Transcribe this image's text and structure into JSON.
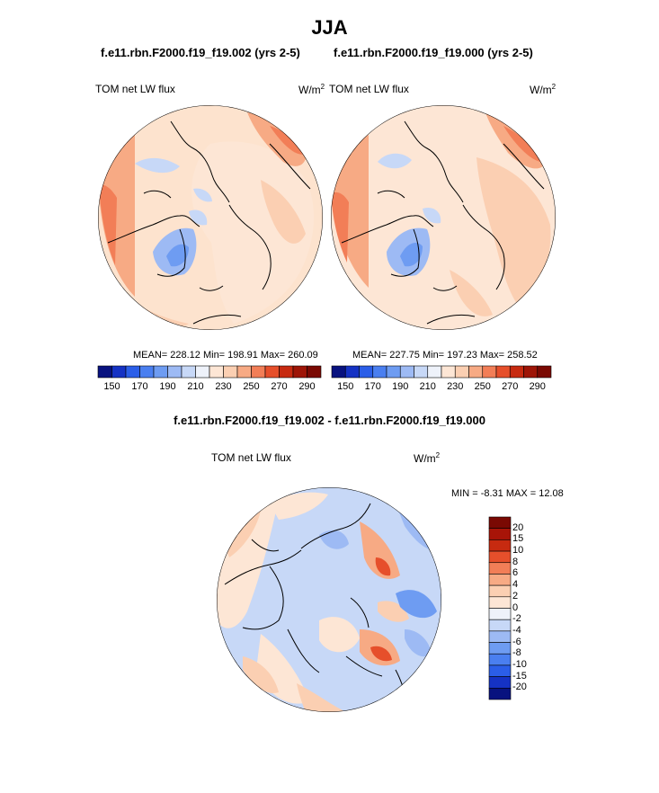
{
  "page_title": "JJA",
  "colors": {
    "palette": [
      "#08127f",
      "#1532c4",
      "#2b5ee8",
      "#4a7ff0",
      "#6e9cf2",
      "#9dbaf4",
      "#c7d8f7",
      "#eef2fa",
      "#fde6d5",
      "#fbcfb2",
      "#f7aa84",
      "#f27e57",
      "#e64f2b",
      "#c72a10",
      "#9e1507",
      "#7a0903"
    ],
    "ocean_base_left": "#fde3ce",
    "coast": "#000000"
  },
  "chart_data": [
    {
      "type": "heatmap",
      "title": "f.e11.rbn.F2000.f19_f19.002 (yrs 2-5)",
      "variable": "TOM net LW flux",
      "units_base": "W/m",
      "units_sup": "2",
      "stats": {
        "mean": 228.12,
        "min": 198.91,
        "max": 260.09
      },
      "stats_text": "MEAN= 228.12  Min= 198.91  Max= 260.09",
      "colorbar_ticks": [
        "150",
        "170",
        "190",
        "210",
        "230",
        "250",
        "270",
        "290"
      ],
      "levels": [
        140,
        150,
        160,
        170,
        180,
        190,
        200,
        210,
        220,
        230,
        240,
        250,
        260,
        270,
        280,
        290,
        300
      ]
    },
    {
      "type": "heatmap",
      "title": "f.e11.rbn.F2000.f19_f19.000 (yrs 2-5)",
      "variable": "TOM net LW flux",
      "units_base": "W/m",
      "units_sup": "2",
      "stats": {
        "mean": 227.75,
        "min": 197.23,
        "max": 258.52
      },
      "stats_text": "MEAN= 227.75  Min= 197.23  Max= 258.52",
      "colorbar_ticks": [
        "150",
        "170",
        "190",
        "210",
        "230",
        "250",
        "270",
        "290"
      ],
      "levels": [
        140,
        150,
        160,
        170,
        180,
        190,
        200,
        210,
        220,
        230,
        240,
        250,
        260,
        270,
        280,
        290,
        300
      ]
    },
    {
      "type": "heatmap",
      "title": "f.e11.rbn.F2000.f19_f19.002 - f.e11.rbn.F2000.f19_f19.000",
      "variable": "TOM net LW flux",
      "units_base": "W/m",
      "units_sup": "2",
      "stats": {
        "min": -8.31,
        "max": 12.08
      },
      "stats_text": "MIN =  -8.31 MAX =  12.08",
      "colorbar_ticks": [
        "20",
        "15",
        "10",
        "8",
        "6",
        "4",
        "2",
        "0",
        "-2",
        "-4",
        "-6",
        "-8",
        "-10",
        "-15",
        "-20"
      ]
    }
  ]
}
